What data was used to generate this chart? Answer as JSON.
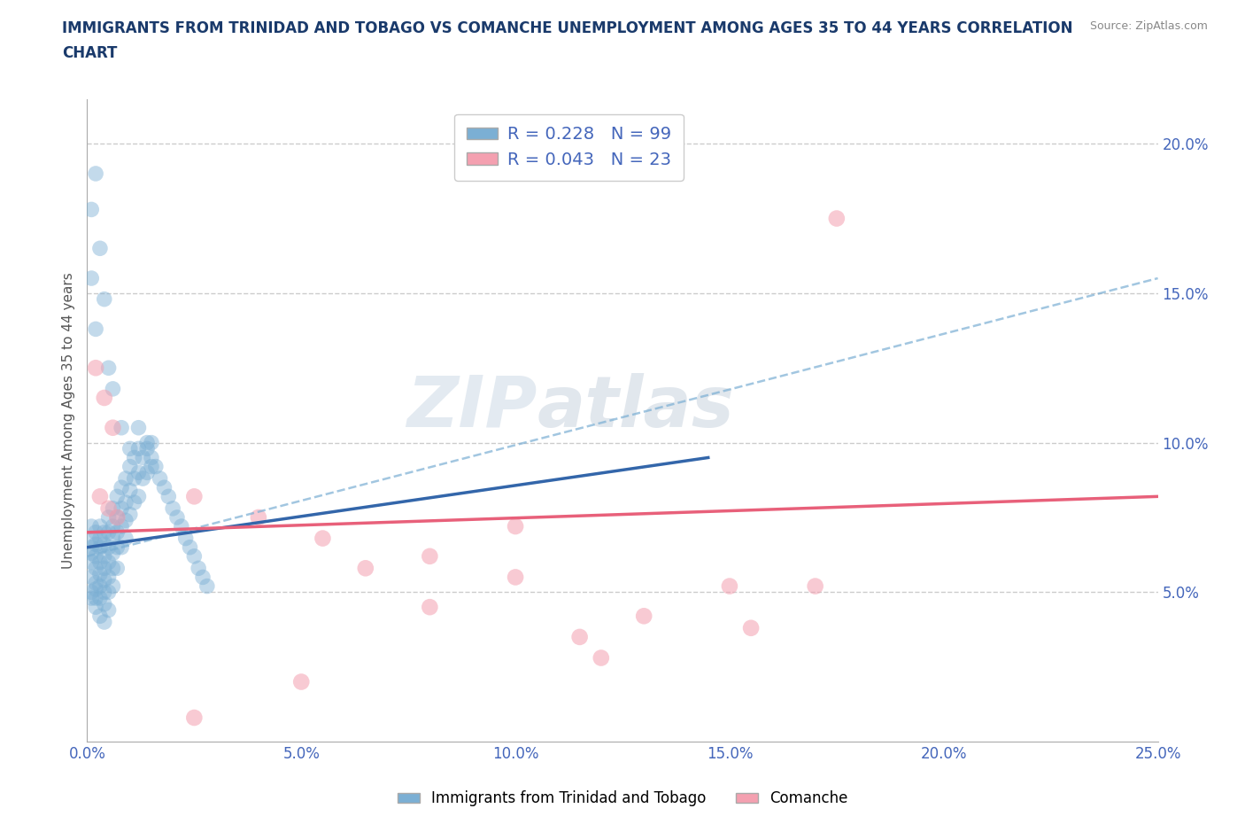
{
  "title": "IMMIGRANTS FROM TRINIDAD AND TOBAGO VS COMANCHE UNEMPLOYMENT AMONG AGES 35 TO 44 YEARS CORRELATION\nCHART",
  "ylabel": "Unemployment Among Ages 35 to 44 years",
  "source_text": "Source: ZipAtlas.com",
  "xlim": [
    0.0,
    0.25
  ],
  "ylim": [
    0.0,
    0.215
  ],
  "xticks": [
    0.0,
    0.05,
    0.1,
    0.15,
    0.2,
    0.25
  ],
  "yticks": [
    0.05,
    0.1,
    0.15,
    0.2
  ],
  "xticklabels": [
    "0.0%",
    "5.0%",
    "10.0%",
    "15.0%",
    "20.0%",
    "25.0%"
  ],
  "yticklabels": [
    "5.0%",
    "10.0%",
    "15.0%",
    "20.0%"
  ],
  "legend_labels": [
    "Immigrants from Trinidad and Tobago",
    "Comanche"
  ],
  "R_blue": 0.228,
  "N_blue": 99,
  "R_pink": 0.043,
  "N_pink": 23,
  "blue_color": "#7BAFD4",
  "pink_color": "#F4A0B0",
  "blue_scatter": [
    [
      0.001,
      0.068
    ],
    [
      0.001,
      0.072
    ],
    [
      0.001,
      0.065
    ],
    [
      0.001,
      0.06
    ],
    [
      0.001,
      0.055
    ],
    [
      0.001,
      0.05
    ],
    [
      0.001,
      0.048
    ],
    [
      0.001,
      0.063
    ],
    [
      0.002,
      0.07
    ],
    [
      0.002,
      0.066
    ],
    [
      0.002,
      0.062
    ],
    [
      0.002,
      0.058
    ],
    [
      0.002,
      0.053
    ],
    [
      0.002,
      0.051
    ],
    [
      0.002,
      0.048
    ],
    [
      0.002,
      0.045
    ],
    [
      0.003,
      0.072
    ],
    [
      0.003,
      0.068
    ],
    [
      0.003,
      0.065
    ],
    [
      0.003,
      0.06
    ],
    [
      0.003,
      0.056
    ],
    [
      0.003,
      0.052
    ],
    [
      0.003,
      0.048
    ],
    [
      0.003,
      0.042
    ],
    [
      0.004,
      0.07
    ],
    [
      0.004,
      0.066
    ],
    [
      0.004,
      0.062
    ],
    [
      0.004,
      0.058
    ],
    [
      0.004,
      0.054
    ],
    [
      0.004,
      0.05
    ],
    [
      0.004,
      0.046
    ],
    [
      0.004,
      0.04
    ],
    [
      0.005,
      0.075
    ],
    [
      0.005,
      0.07
    ],
    [
      0.005,
      0.065
    ],
    [
      0.005,
      0.06
    ],
    [
      0.005,
      0.055
    ],
    [
      0.005,
      0.05
    ],
    [
      0.005,
      0.044
    ],
    [
      0.006,
      0.078
    ],
    [
      0.006,
      0.072
    ],
    [
      0.006,
      0.068
    ],
    [
      0.006,
      0.063
    ],
    [
      0.006,
      0.058
    ],
    [
      0.006,
      0.052
    ],
    [
      0.007,
      0.082
    ],
    [
      0.007,
      0.075
    ],
    [
      0.007,
      0.07
    ],
    [
      0.007,
      0.065
    ],
    [
      0.007,
      0.058
    ],
    [
      0.008,
      0.085
    ],
    [
      0.008,
      0.078
    ],
    [
      0.008,
      0.072
    ],
    [
      0.008,
      0.065
    ],
    [
      0.009,
      0.088
    ],
    [
      0.009,
      0.08
    ],
    [
      0.009,
      0.074
    ],
    [
      0.009,
      0.068
    ],
    [
      0.01,
      0.092
    ],
    [
      0.01,
      0.084
    ],
    [
      0.01,
      0.076
    ],
    [
      0.011,
      0.095
    ],
    [
      0.011,
      0.088
    ],
    [
      0.011,
      0.08
    ],
    [
      0.012,
      0.098
    ],
    [
      0.012,
      0.09
    ],
    [
      0.012,
      0.082
    ],
    [
      0.013,
      0.095
    ],
    [
      0.013,
      0.088
    ],
    [
      0.014,
      0.098
    ],
    [
      0.014,
      0.09
    ],
    [
      0.015,
      0.1
    ],
    [
      0.015,
      0.092
    ],
    [
      0.002,
      0.19
    ],
    [
      0.001,
      0.178
    ],
    [
      0.003,
      0.165
    ],
    [
      0.001,
      0.155
    ],
    [
      0.004,
      0.148
    ],
    [
      0.002,
      0.138
    ],
    [
      0.005,
      0.125
    ],
    [
      0.006,
      0.118
    ],
    [
      0.008,
      0.105
    ],
    [
      0.01,
      0.098
    ],
    [
      0.012,
      0.105
    ],
    [
      0.014,
      0.1
    ],
    [
      0.015,
      0.095
    ],
    [
      0.016,
      0.092
    ],
    [
      0.017,
      0.088
    ],
    [
      0.018,
      0.085
    ],
    [
      0.019,
      0.082
    ],
    [
      0.02,
      0.078
    ],
    [
      0.021,
      0.075
    ],
    [
      0.022,
      0.072
    ],
    [
      0.023,
      0.068
    ],
    [
      0.024,
      0.065
    ],
    [
      0.025,
      0.062
    ],
    [
      0.026,
      0.058
    ],
    [
      0.027,
      0.055
    ],
    [
      0.028,
      0.052
    ]
  ],
  "pink_scatter": [
    [
      0.002,
      0.125
    ],
    [
      0.004,
      0.115
    ],
    [
      0.006,
      0.105
    ],
    [
      0.003,
      0.082
    ],
    [
      0.005,
      0.078
    ],
    [
      0.007,
      0.075
    ],
    [
      0.025,
      0.082
    ],
    [
      0.04,
      0.075
    ],
    [
      0.055,
      0.068
    ],
    [
      0.065,
      0.058
    ],
    [
      0.08,
      0.045
    ],
    [
      0.1,
      0.055
    ],
    [
      0.115,
      0.035
    ],
    [
      0.13,
      0.042
    ],
    [
      0.15,
      0.052
    ],
    [
      0.155,
      0.038
    ],
    [
      0.17,
      0.052
    ],
    [
      0.175,
      0.175
    ],
    [
      0.08,
      0.062
    ],
    [
      0.1,
      0.072
    ],
    [
      0.12,
      0.028
    ],
    [
      0.05,
      0.02
    ],
    [
      0.025,
      0.008
    ]
  ],
  "blue_solid_line_x": [
    0.0,
    0.145
  ],
  "blue_solid_line_y": [
    0.065,
    0.095
  ],
  "blue_dash_line_x": [
    0.0,
    0.25
  ],
  "blue_dash_line_y": [
    0.062,
    0.155
  ],
  "pink_line_x": [
    0.0,
    0.25
  ],
  "pink_line_y": [
    0.07,
    0.082
  ],
  "watermark_zip": "ZIP",
  "watermark_atlas": "atlas",
  "background_color": "#ffffff",
  "grid_color": "#cccccc",
  "title_color": "#1a3a6b",
  "tick_label_color": "#4466BB",
  "axis_label_color": "#555555"
}
